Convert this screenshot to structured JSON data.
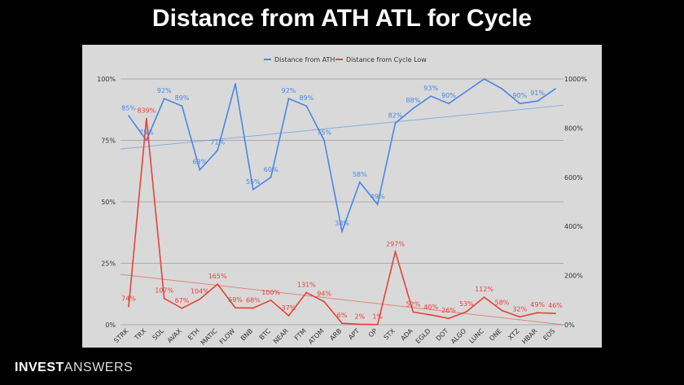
{
  "title": "Distance from ATH ATL for Cycle",
  "brand": {
    "part1": "INVEST",
    "part2": "ANSWERS"
  },
  "colors": {
    "ath": "#4a86e8",
    "low": "#e8413a",
    "background": "#d9d9d9"
  },
  "chart_data": {
    "type": "line",
    "categories": [
      "STRK",
      "TRX",
      "SOL",
      "AVAX",
      "ETH",
      "MATIC",
      "FLOW",
      "BNB",
      "BTC",
      "NEAR",
      "FTM",
      "ATOM",
      "ARB",
      "APT",
      "OP",
      "STX",
      "ADA",
      "EGLD",
      "DOT",
      "ALGO",
      "LUNC",
      "ONE",
      "XTZ",
      "HBAR",
      "EOS"
    ],
    "series": [
      {
        "name": "Distance from ATH",
        "axis": "left",
        "values": [
          85,
          75,
          92,
          89,
          63,
          71,
          98,
          55,
          60,
          92,
          89,
          75,
          38,
          58,
          49,
          82,
          88,
          93,
          90,
          95,
          100,
          96,
          90,
          91,
          96
        ],
        "labels": [
          "85%",
          "75%",
          "92%",
          "89%",
          "63%",
          "71%",
          "",
          "55%",
          "60%",
          "92%",
          "89%",
          "75%",
          "38%",
          "58%",
          "49%",
          "82%",
          "88%",
          "93%",
          "90%",
          "",
          "",
          "",
          "90%",
          "91%",
          ""
        ],
        "trendline": [
          71.5,
          89.3
        ]
      },
      {
        "name": "Distance from Cycle Low",
        "axis": "right",
        "values": [
          74,
          839,
          107,
          67,
          104,
          165,
          69,
          68,
          100,
          37,
          131,
          94,
          6,
          2,
          1,
          297,
          52,
          40,
          26,
          53,
          112,
          58,
          32,
          49,
          46
        ],
        "labels": [
          "74%",
          "839%",
          "107%",
          "67%",
          "104%",
          "165%",
          "69%",
          "68%",
          "100%",
          "37%",
          "131%",
          "94%",
          "6%",
          "2%",
          "1%",
          "297%",
          "52%",
          "40%",
          "26%",
          "53%",
          "112%",
          "58%",
          "32%",
          "49%",
          "46%"
        ],
        "trendline": [
          205,
          0
        ]
      }
    ],
    "y_left": {
      "ticks": [
        "0%",
        "25%",
        "50%",
        "75%",
        "100%"
      ],
      "range": [
        0,
        100
      ]
    },
    "y_right": {
      "ticks": [
        "0%",
        "200%",
        "400%",
        "600%",
        "800%",
        "1000%"
      ],
      "range": [
        0,
        1000
      ]
    },
    "legend_position": "top",
    "grid": true
  }
}
